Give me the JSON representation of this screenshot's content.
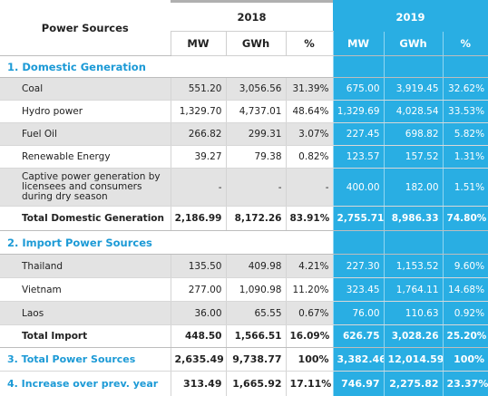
{
  "header": {
    "title": "Power Sources",
    "year_2018": "2018",
    "year_2019": "2019",
    "units": [
      "MW",
      "GWh",
      "%"
    ]
  },
  "sections": {
    "domestic_title": "1. Domestic Generation",
    "import_title": "2. Import Power Sources"
  },
  "domestic": [
    {
      "label": "Coal",
      "v": [
        "551.20",
        "3,056.56",
        "31.39%",
        "675.00",
        "3,919.45",
        "32.62%"
      ]
    },
    {
      "label": "Hydro power",
      "v": [
        "1,329.70",
        "4,737.01",
        "48.64%",
        "1,329.69",
        "4,028.54",
        "33.53%"
      ]
    },
    {
      "label": "Fuel Oil",
      "v": [
        "266.82",
        "299.31",
        "3.07%",
        "227.45",
        "698.82",
        "5.82%"
      ]
    },
    {
      "label": "Renewable Energy",
      "v": [
        "39.27",
        "79.38",
        "0.82%",
        "123.57",
        "157.52",
        "1.31%"
      ]
    },
    {
      "label": "Captive power generation by licensees and consumers during dry season",
      "v": [
        "-",
        "-",
        "-",
        "400.00",
        "182.00",
        "1.51%"
      ]
    }
  ],
  "domestic_total": {
    "label": "Total Domestic Generation",
    "v": [
      "2,186.99",
      "8,172.26",
      "83.91%",
      "2,755.71",
      "8,986.33",
      "74.80%"
    ]
  },
  "imports": [
    {
      "label": "Thailand",
      "v": [
        "135.50",
        "409.98",
        "4.21%",
        "227.30",
        "1,153.52",
        "9.60%"
      ]
    },
    {
      "label": "Vietnam",
      "v": [
        "277.00",
        "1,090.98",
        "11.20%",
        "323.45",
        "1,764.11",
        "14.68%"
      ]
    },
    {
      "label": "Laos",
      "v": [
        "36.00",
        "65.55",
        "0.67%",
        "76.00",
        "110.63",
        "0.92%"
      ]
    }
  ],
  "import_total": {
    "label": "Total Import",
    "v": [
      "448.50",
      "1,566.51",
      "16.09%",
      "626.75",
      "3,028.26",
      "25.20%"
    ]
  },
  "total_sources": {
    "label": "3. Total Power Sources",
    "v": [
      "2,635.49",
      "9,738.77",
      "100%",
      "3,382.46",
      "12,014.59",
      "100%"
    ]
  },
  "increase": {
    "label": "4. Increase over prev. year",
    "v": [
      "313.49",
      "1,665.92",
      "17.11%",
      "746.97",
      "2,275.82",
      "23.37%"
    ]
  }
}
